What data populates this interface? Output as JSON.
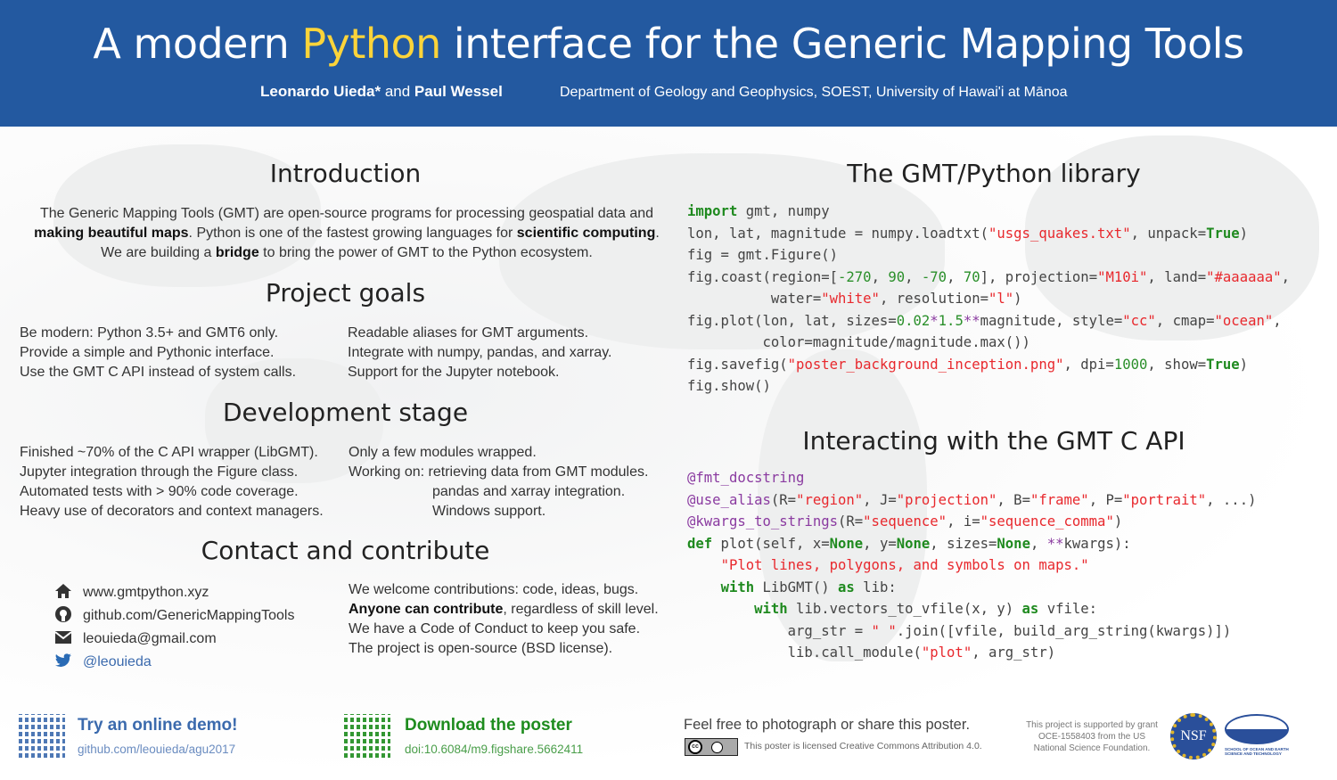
{
  "header": {
    "title_pre": "A modern ",
    "title_hl": "Python",
    "title_post": " interface for the Generic Mapping Tools",
    "author1": "Leonardo Uieda*",
    "and": " and ",
    "author2": "Paul Wessel",
    "affiliation": "Department of Geology and Geophysics, SOEST, University of Hawai'i at Mānoa",
    "bg_color": "#2359a0",
    "highlight_color": "#fcd43a"
  },
  "intro": {
    "heading": "Introduction",
    "lines": [
      [
        [
          "t",
          "The Generic Mapping Tools (GMT) are open-source programs for processing geospatial data and"
        ]
      ],
      [
        [
          "b",
          "making beautiful maps"
        ],
        [
          "t",
          ". Python is one of the fastest growing languages for "
        ],
        [
          "b",
          "scientific computing"
        ],
        [
          "t",
          "."
        ]
      ],
      [
        [
          "t",
          "We are building a "
        ],
        [
          "b",
          "bridge"
        ],
        [
          "t",
          " to bring the power of GMT to the Python ecosystem."
        ]
      ]
    ]
  },
  "goals": {
    "heading": "Project goals",
    "left": [
      "Be modern: Python 3.5+ and GMT6 only.",
      "Provide a simple and Pythonic interface.",
      "Use the GMT C API instead of system calls."
    ],
    "right": [
      "Readable aliases for GMT arguments.",
      "Integrate with numpy, pandas, and xarray.",
      "Support for the Jupyter notebook."
    ]
  },
  "dev": {
    "heading": "Development stage",
    "left": [
      "Finished ~70% of the C API wrapper (LibGMT).",
      "Jupyter integration through the Figure class.",
      "Automated tests with > 90% code coverage.",
      "Heavy use of decorators and context managers."
    ],
    "right": [
      "Only a few modules wrapped.",
      "Working on: retrieving data from GMT modules.",
      "pandas and xarray integration.",
      "Windows support."
    ]
  },
  "contact": {
    "heading": "Contact and contribute",
    "links": [
      {
        "icon": "home-icon",
        "text": "www.gmtpython.xyz"
      },
      {
        "icon": "github-icon",
        "text": "github.com/GenericMappingTools"
      },
      {
        "icon": "email-icon",
        "text": "leouieda@gmail.com"
      },
      {
        "icon": "twitter-icon",
        "text": "@leouieda"
      }
    ],
    "right": [
      [
        [
          "t",
          "We welcome contributions: code, ideas, bugs."
        ]
      ],
      [
        [
          "b",
          "Anyone can contribute"
        ],
        [
          "t",
          ", regardless of skill level."
        ]
      ],
      [
        [
          "t",
          "We have a Code of Conduct to keep you safe."
        ]
      ],
      [
        [
          "t",
          "The project is open-source (BSD license)."
        ]
      ]
    ]
  },
  "library": {
    "heading": "The GMT/Python library",
    "code": [
      [
        [
          "k",
          "import"
        ],
        [
          "t",
          " gmt, numpy"
        ]
      ],
      [
        [
          "t",
          "lon, lat, magnitude = numpy.loadtxt("
        ],
        [
          "s",
          "\"usgs_quakes.txt\""
        ],
        [
          "t",
          ", unpack="
        ],
        [
          "k",
          "True"
        ],
        [
          "t",
          ")"
        ]
      ],
      [
        [
          "t",
          "fig = gmt.Figure()"
        ]
      ],
      [
        [
          "t",
          "fig.coast(region=["
        ],
        [
          "n",
          "-270"
        ],
        [
          "t",
          ", "
        ],
        [
          "n",
          "90"
        ],
        [
          "t",
          ", "
        ],
        [
          "n",
          "-70"
        ],
        [
          "t",
          ", "
        ],
        [
          "n",
          "70"
        ],
        [
          "t",
          "], projection="
        ],
        [
          "s",
          "\"M10i\""
        ],
        [
          "t",
          ", land="
        ],
        [
          "s",
          "\"#aaaaaa\""
        ],
        [
          "t",
          ","
        ]
      ],
      [
        [
          "t",
          "          water="
        ],
        [
          "s",
          "\"white\""
        ],
        [
          "t",
          ", resolution="
        ],
        [
          "s",
          "\"l\""
        ],
        [
          "t",
          ")"
        ]
      ],
      [
        [
          "t",
          "fig.plot(lon, lat, sizes="
        ],
        [
          "n",
          "0.02"
        ],
        [
          "o",
          "*"
        ],
        [
          "n",
          "1.5"
        ],
        [
          "o",
          "**"
        ],
        [
          "t",
          "magnitude, style="
        ],
        [
          "s",
          "\"cc\""
        ],
        [
          "t",
          ", cmap="
        ],
        [
          "s",
          "\"ocean\""
        ],
        [
          "t",
          ","
        ]
      ],
      [
        [
          "t",
          "         color=magnitude/magnitude.max())"
        ]
      ],
      [
        [
          "t",
          "fig.savefig("
        ],
        [
          "s",
          "\"poster_background_inception.png\""
        ],
        [
          "t",
          ", dpi="
        ],
        [
          "n",
          "1000"
        ],
        [
          "t",
          ", show="
        ],
        [
          "k",
          "True"
        ],
        [
          "t",
          ")"
        ]
      ],
      [
        [
          "t",
          "fig.show()"
        ]
      ]
    ]
  },
  "api": {
    "heading": "Interacting with the GMT C API",
    "code": [
      [
        [
          "d",
          "@fmt_docstring"
        ]
      ],
      [
        [
          "d",
          "@use_alias"
        ],
        [
          "t",
          "(R="
        ],
        [
          "s",
          "\"region\""
        ],
        [
          "t",
          ", J="
        ],
        [
          "s",
          "\"projection\""
        ],
        [
          "t",
          ", B="
        ],
        [
          "s",
          "\"frame\""
        ],
        [
          "t",
          ", P="
        ],
        [
          "s",
          "\"portrait\""
        ],
        [
          "t",
          ", ...)"
        ]
      ],
      [
        [
          "d",
          "@kwargs_to_strings"
        ],
        [
          "t",
          "(R="
        ],
        [
          "s",
          "\"sequence\""
        ],
        [
          "t",
          ", i="
        ],
        [
          "s",
          "\"sequence_comma\""
        ],
        [
          "t",
          ")"
        ]
      ],
      [
        [
          "k",
          "def"
        ],
        [
          "t",
          " plot(self, x="
        ],
        [
          "k",
          "None"
        ],
        [
          "t",
          ", y="
        ],
        [
          "k",
          "None"
        ],
        [
          "t",
          ", sizes="
        ],
        [
          "k",
          "None"
        ],
        [
          "t",
          ", "
        ],
        [
          "o",
          "**"
        ],
        [
          "t",
          "kwargs):"
        ]
      ],
      [
        [
          "t",
          "    "
        ],
        [
          "s",
          "\"Plot lines, polygons, and symbols on maps.\""
        ]
      ],
      [
        [
          "t",
          "    "
        ],
        [
          "k",
          "with"
        ],
        [
          "t",
          " LibGMT() "
        ],
        [
          "k",
          "as"
        ],
        [
          "t",
          " lib:"
        ]
      ],
      [
        [
          "t",
          "        "
        ],
        [
          "k",
          "with"
        ],
        [
          "t",
          " lib.vectors_to_vfile(x, y) "
        ],
        [
          "k",
          "as"
        ],
        [
          "t",
          " vfile:"
        ]
      ],
      [
        [
          "t",
          "            arg_str = "
        ],
        [
          "s",
          "\" \""
        ],
        [
          "t",
          ".join([vfile, build_arg_string(kwargs)])"
        ]
      ],
      [
        [
          "t",
          "            lib.call_module("
        ],
        [
          "s",
          "\"plot\""
        ],
        [
          "t",
          ", arg_str)"
        ]
      ]
    ]
  },
  "footer": {
    "demo_title": "Try an online demo!",
    "demo_link": "github.com/leouieda/agu2017",
    "poster_title": "Download the poster",
    "poster_doi": "doi:10.6084/m9.figshare.5662411",
    "share": "Feel free to photograph or share this poster.",
    "license": "This poster is licensed Creative Commons Attribution 4.0.",
    "cc_logo": "cc by",
    "grant": [
      "This project is supported by grant",
      "OCE-1558403 from the US",
      "National Science Foundation."
    ],
    "nsf_logo": "NSF",
    "soest_logo": "SCHOOL OF OCEAN AND EARTH SCIENCE AND TECHNOLOGY",
    "demo_color": "#3b6aad",
    "poster_color": "#1e8c1e"
  }
}
